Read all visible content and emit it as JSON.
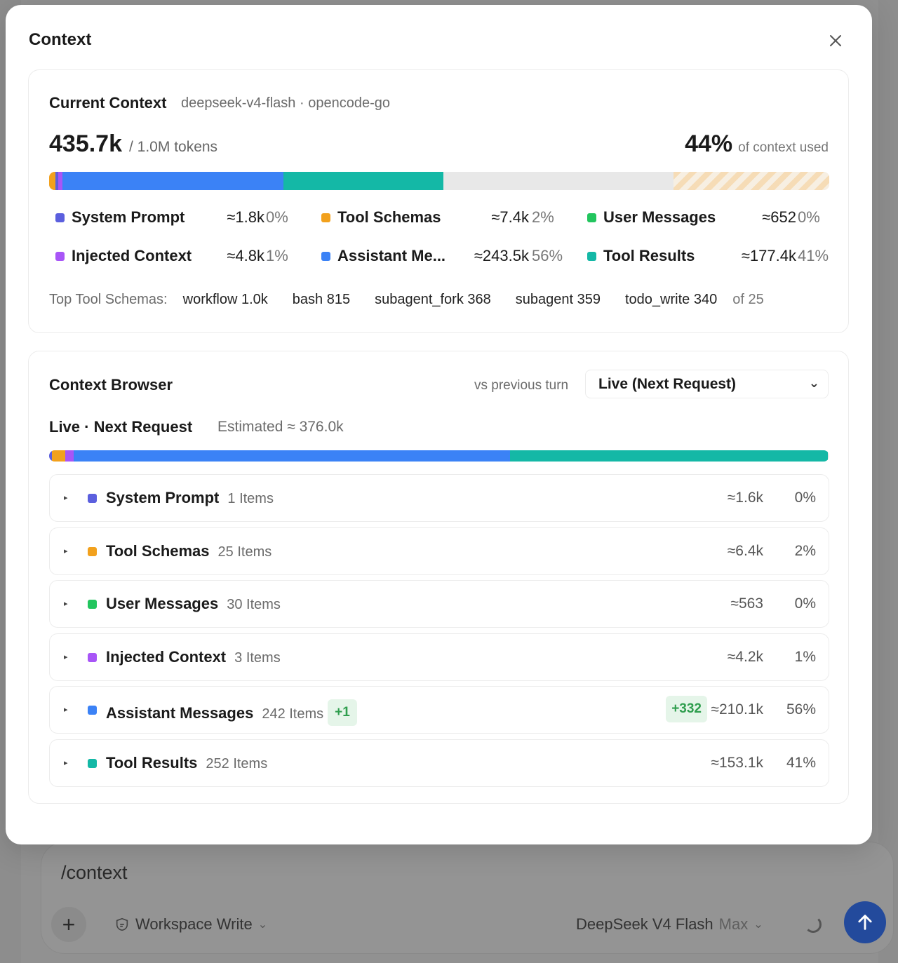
{
  "colors": {
    "system_prompt": "#5b5fde",
    "tool_schemas": "#f2a11d",
    "user_messages": "#22c55e",
    "injected_context": "#a855f7",
    "assistant_messages": "#3b82f6",
    "tool_results": "#14b8a6",
    "send_button": "#234a9c"
  },
  "modal": {
    "title": "Context",
    "close_icon": "close-icon"
  },
  "current": {
    "title": "Current Context",
    "model": "deepseek-v4-flash · opencode-go",
    "tokens_used": "435.7k",
    "tokens_total": "/ 1.0M tokens",
    "percent": "44%",
    "percent_label": "of context used",
    "usage_fractions": {
      "tool_schemas": 0.007,
      "system_prompt": 0.002,
      "injected_context": 0.005,
      "assistant_messages": 0.244,
      "tool_results": 0.177,
      "reserved": 0.2
    },
    "legend": [
      {
        "key": "system_prompt",
        "label": "System Prompt",
        "tokens": "≈1.8k",
        "pct": "0%"
      },
      {
        "key": "tool_schemas",
        "label": "Tool Schemas",
        "tokens": "≈7.4k",
        "pct": "2%"
      },
      {
        "key": "user_messages",
        "label": "User Messages",
        "tokens": "≈652",
        "pct": "0%"
      },
      {
        "key": "injected_context",
        "label": "Injected Context",
        "tokens": "≈4.8k",
        "pct": "1%"
      },
      {
        "key": "assistant_messages",
        "label": "Assistant Me...",
        "tokens": "≈243.5k",
        "pct": "56%"
      },
      {
        "key": "tool_results",
        "label": "Tool Results",
        "tokens": "≈177.4k",
        "pct": "41%"
      }
    ],
    "top_tools_label": "Top Tool Schemas:",
    "top_tools": [
      "workflow 1.0k",
      "bash 815",
      "subagent_fork 368",
      "subagent 359",
      "todo_write 340"
    ],
    "top_tools_more": "of 25"
  },
  "browser": {
    "title": "Context Browser",
    "vs_label": "vs previous turn",
    "select_value": "Live (Next Request)",
    "live_title": "Live · Next Request",
    "estimated": "Estimated ≈ 376.0k",
    "usage_fractions": {
      "tool_schemas": 0.017,
      "system_prompt": 0.004,
      "injected_context": 0.011,
      "assistant_messages": 0.559,
      "tool_results": 0.407
    },
    "rows": [
      {
        "key": "system_prompt",
        "name": "System Prompt",
        "count": "1 Items",
        "tokens": "≈1.6k",
        "pct": "0%"
      },
      {
        "key": "tool_schemas",
        "name": "Tool Schemas",
        "count": "25 Items",
        "tokens": "≈6.4k",
        "pct": "2%"
      },
      {
        "key": "user_messages",
        "name": "User Messages",
        "count": "30 Items",
        "tokens": "≈563",
        "pct": "0%"
      },
      {
        "key": "injected_context",
        "name": "Injected Context",
        "count": "3 Items",
        "tokens": "≈4.2k",
        "pct": "1%"
      },
      {
        "key": "assistant_messages",
        "name": "Assistant Messages",
        "count": "242 Items",
        "badge": "+1",
        "delta": "+332",
        "tokens": "≈210.1k",
        "pct": "56%"
      },
      {
        "key": "tool_results",
        "name": "Tool Results",
        "count": "252 Items",
        "tokens": "≈153.1k",
        "pct": "41%"
      }
    ]
  },
  "composer": {
    "text": "/context",
    "mode": "Workspace Write",
    "model": "DeepSeek V4 Flash",
    "model_variant": "Max"
  }
}
